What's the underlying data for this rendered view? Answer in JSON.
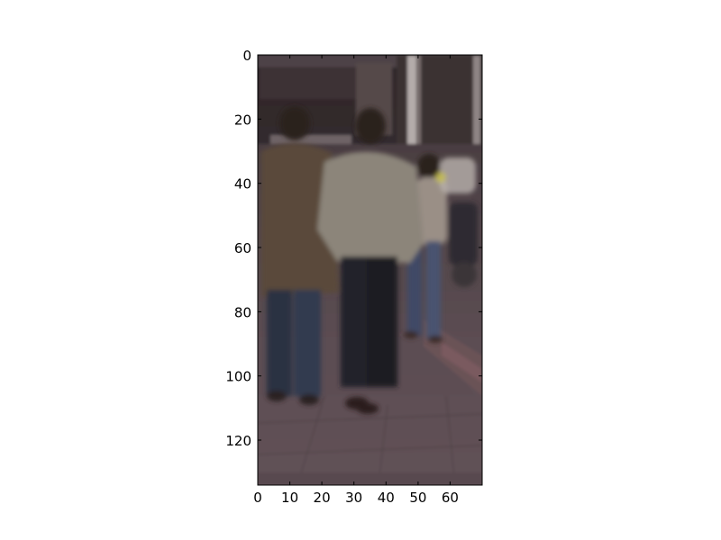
{
  "figure": {
    "x_ticks": [
      "0",
      "10",
      "20",
      "30",
      "40",
      "50",
      "60"
    ],
    "y_ticks": [
      "0",
      "20",
      "40",
      "60",
      "80",
      "100",
      "120"
    ]
  },
  "image": {
    "subject": "pedestrians-walking-away",
    "x_range": [
      0,
      70
    ],
    "y_range": [
      0,
      134
    ],
    "colors": {
      "pavement": "#57494e",
      "background_building": "#3b3134",
      "brown_coat": "#5a4a3b",
      "grey_jacket": "#8c857a",
      "dark_trousers": "#24222a",
      "blue_jeans": "#3f4a66",
      "hair": "#2b201d"
    }
  }
}
